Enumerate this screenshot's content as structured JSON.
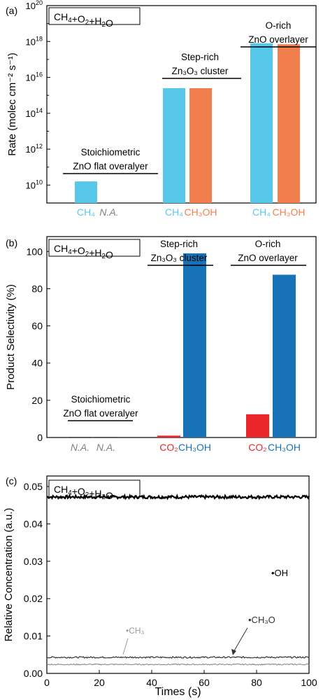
{
  "chart_data": [
    {
      "panel": "(a)",
      "type": "bar",
      "title": "",
      "condition_label": "CH4+O2+H2O",
      "ylabel": "Rate (molec cm⁻² s⁻¹)",
      "yscale": "log",
      "ylim": [
        1000000000.0,
        1e+20
      ],
      "y_ticks": [
        {
          "value": 10000000000.0,
          "mant": "10",
          "exp": "10"
        },
        {
          "value": 1000000000000.0,
          "mant": "10",
          "exp": "12"
        },
        {
          "value": 100000000000000.0,
          "mant": "10",
          "exp": "14"
        },
        {
          "value": 1e+16,
          "mant": "10",
          "exp": "16"
        },
        {
          "value": 1e+18,
          "mant": "10",
          "exp": "18"
        },
        {
          "value": 1e+20,
          "mant": "10",
          "exp": "20"
        }
      ],
      "groups": [
        {
          "label_lines": [
            "Stoichiometric",
            "ZnO flat overalyer"
          ],
          "bars": [
            {
              "series": "CH4",
              "label": "CH₄",
              "value": 16000000000.0,
              "color": "#58c8ea"
            },
            {
              "series": "CH3OH",
              "label": "N.A.",
              "value": null,
              "color": "#f07f4d"
            }
          ]
        },
        {
          "label_lines": [
            "Step-rich",
            "Zn₃O₃ cluster"
          ],
          "bars": [
            {
              "series": "CH4",
              "label": "CH₄",
              "value": 2500000000000000.0,
              "color": "#58c8ea"
            },
            {
              "series": "CH3OH",
              "label": "CH₃OH",
              "value": 2500000000000000.0,
              "color": "#f07f4d"
            }
          ]
        },
        {
          "label_lines": [
            "O-rich",
            "ZnO overlayer"
          ],
          "bars": [
            {
              "series": "CH4",
              "label": "CH₄",
              "value": 8e+17,
              "color": "#58c8ea"
            },
            {
              "series": "CH3OH",
              "label": "CH₃OH",
              "value": 7e+17,
              "color": "#f07f4d"
            }
          ]
        }
      ]
    },
    {
      "panel": "(b)",
      "type": "bar",
      "title": "",
      "condition_label": "CH4+O2+H2O",
      "ylabel": "Product Selectivity (%)",
      "ylim": [
        0,
        108
      ],
      "y_ticks": [
        0,
        20,
        40,
        60,
        80,
        100
      ],
      "groups": [
        {
          "label_lines": [
            "Stoichiometric",
            "ZnO flat overalyer"
          ],
          "bars": [
            {
              "series": "CO2",
              "label": "N.A.",
              "value": null,
              "color": "#e8262a"
            },
            {
              "series": "CH3OH",
              "label": "N.A.",
              "value": null,
              "color": "#1772b8"
            }
          ]
        },
        {
          "label_lines": [
            "Step-rich",
            "Zn₃O₃ cluster"
          ],
          "bars": [
            {
              "series": "CO2",
              "label": "CO₂",
              "value": 1,
              "color": "#e8262a"
            },
            {
              "series": "CH3OH",
              "label": "CH₃OH",
              "value": 99,
              "color": "#1772b8"
            }
          ]
        },
        {
          "label_lines": [
            "O-rich",
            "ZnO overlayer"
          ],
          "bars": [
            {
              "series": "CO2",
              "label": "CO₂",
              "value": 12.5,
              "color": "#e8262a"
            },
            {
              "series": "CH3OH",
              "label": "CH₃OH",
              "value": 87.5,
              "color": "#1772b8"
            }
          ]
        }
      ]
    },
    {
      "panel": "(c)",
      "type": "line",
      "title": "",
      "condition_label": "CH4+O2+H2O",
      "xlabel": "Times (s)",
      "ylabel": "Relative Concentration (a.u.)",
      "xlim": [
        0,
        100
      ],
      "ylim": [
        0,
        0.05
      ],
      "x_ticks": [
        0,
        20,
        40,
        60,
        80,
        100
      ],
      "y_ticks": [
        0.0,
        0.01,
        0.02,
        0.03,
        0.04,
        0.05
      ],
      "series": [
        {
          "name": "•OH",
          "mean": 0.0472,
          "noise": 0.0004,
          "color": "#000000"
        },
        {
          "name": "•CH₃O",
          "mean": 0.0043,
          "noise": 0.0002,
          "color": "#333333"
        },
        {
          "name": "•CH₃",
          "mean": 0.0024,
          "noise": 0.00015,
          "color": "#808080"
        }
      ]
    }
  ]
}
